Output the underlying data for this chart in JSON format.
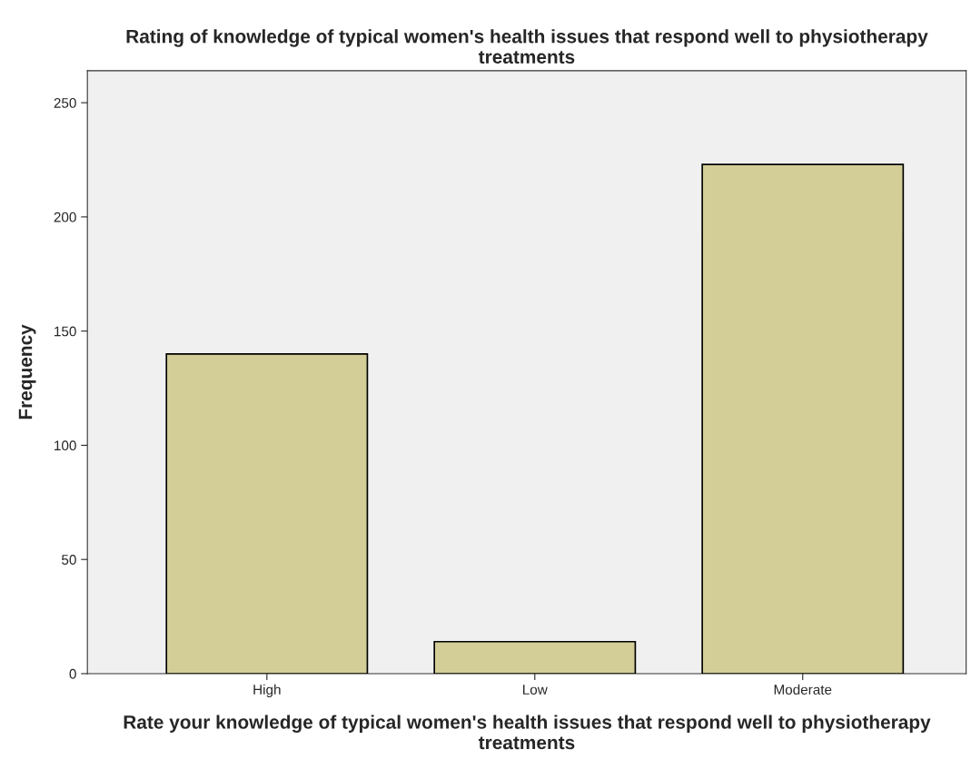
{
  "chart_data": {
    "type": "bar",
    "title": "Rating of knowledge of typical women's health issues that respond well to physiotherapy treatments",
    "xlabel": "Rate your knowledge of typical women's health issues that respond well to physiotherapy treatments",
    "ylabel": "Frequency",
    "categories": [
      "High",
      "Low",
      "Moderate"
    ],
    "values": [
      140,
      14,
      223
    ],
    "color": "#d3ce97",
    "ylim": [
      0,
      264
    ],
    "yticks": [
      0,
      50,
      100,
      150,
      200,
      250
    ],
    "grid": false,
    "legend": false
  }
}
